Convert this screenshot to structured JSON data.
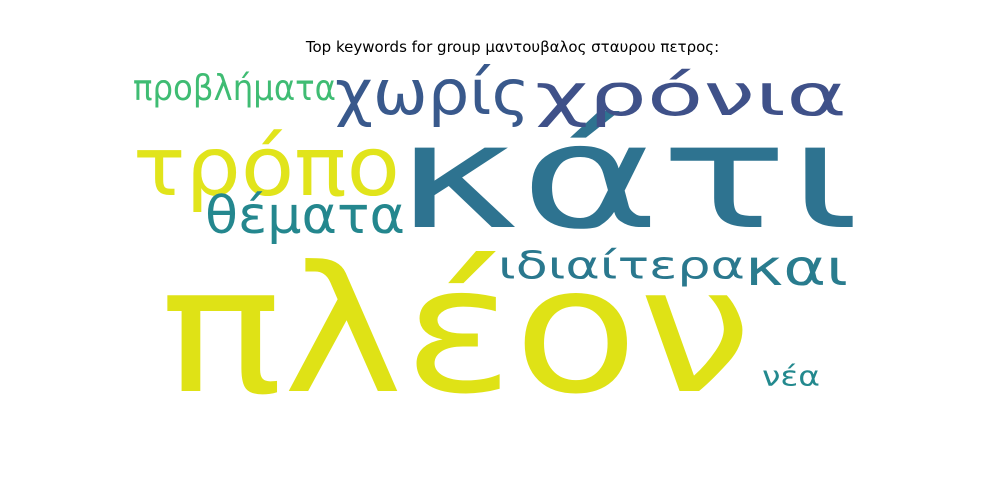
{
  "title": "Top keywords for group μαντουβαλος σταυρου πετρος:",
  "words": [
    {
      "text": "κάτι",
      "color": "#2e7390"
    },
    {
      "text": "πλέον",
      "color": "#dfe216"
    },
    {
      "text": "τρόπο",
      "color": "#e1e41b"
    },
    {
      "text": "χωρίς",
      "color": "#39598c"
    },
    {
      "text": "χρόνια",
      "color": "#3f5189"
    },
    {
      "text": "θέματα",
      "color": "#24878e"
    },
    {
      "text": "ιδιαίτερα",
      "color": "#2a788e"
    },
    {
      "text": "και",
      "color": "#297c8e"
    },
    {
      "text": "προβλήματα",
      "color": "#3fbc73"
    },
    {
      "text": "νέα",
      "color": "#23898e"
    }
  ]
}
